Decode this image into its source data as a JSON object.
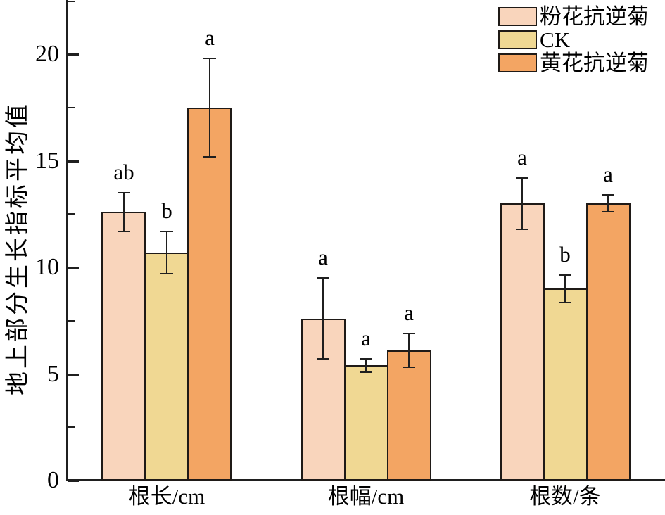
{
  "colors": {
    "pink": "#F9D5BC",
    "ck": "#F0D893",
    "orange": "#F3A563",
    "axis": "#1f1f1f",
    "bar_border": "#1f1a17"
  },
  "chart_data": {
    "type": "bar",
    "title": "",
    "ylabel": "地上部分生长指标平均值",
    "xlabel": "",
    "categories": [
      "根长/cm",
      "根幅/cm",
      "根数/条"
    ],
    "series": [
      {
        "name": "粉花抗逆菊",
        "color_key": "pink",
        "values": [
          12.6,
          7.6,
          13.0
        ],
        "errors": [
          0.9,
          1.9,
          1.2
        ],
        "sig_letters": [
          "ab",
          "a",
          "a"
        ]
      },
      {
        "name": "CK",
        "color_key": "ck",
        "values": [
          10.7,
          5.4,
          9.0
        ],
        "errors": [
          1.0,
          0.3,
          0.65
        ],
        "sig_letters": [
          "b",
          "a",
          "b"
        ]
      },
      {
        "name": "黄花抗逆菊",
        "color_key": "orange",
        "values": [
          17.5,
          6.1,
          13.0
        ],
        "errors": [
          2.3,
          0.8,
          0.4
        ],
        "sig_letters": [
          "a",
          "a",
          "a"
        ]
      }
    ],
    "ylim": [
      0,
      22.55
    ],
    "yticks": [
      0,
      5,
      10,
      15,
      20
    ],
    "yticks_minor": [
      2.5,
      7.5,
      12.5,
      17.5,
      22.5
    ],
    "grid": false,
    "legend_position": "top-right",
    "error_bars": true
  }
}
